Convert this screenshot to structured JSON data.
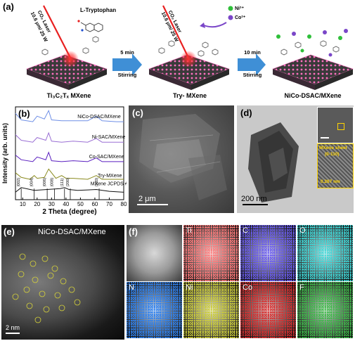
{
  "panel_a": {
    "label": "(a)",
    "laser_text_1": "CO₂ Laser",
    "laser_text_2": "10.6 μm/ 25 W",
    "tryptophan_label": "L-Tryptophan",
    "ni_label": "Ni²⁺",
    "co_label": "Co²⁺",
    "arrow1_top": "5 min",
    "arrow1_bottom": "Stirring",
    "arrow2_top": "10 min",
    "arrow2_bottom": "Stirring",
    "caption1": "Ti₃C₂Tₓ MXene",
    "caption2": "Try- MXene",
    "caption3": "NiCo-DSAC/MXene",
    "colors": {
      "ti": "#ff6fc0",
      "layer": "#2a2a2a",
      "laser": "#e82020",
      "arrow": "#3f8fd6",
      "ni": "#2fbf3a",
      "co": "#7a46c8"
    }
  },
  "panel_b": {
    "label": "(b)",
    "jcpds": "MXene JCPDS # 032-1383",
    "peak_labels": [
      "(002)",
      "(004)",
      "(006)",
      "(008)",
      "(111)",
      "(200)",
      "(220)"
    ]
  },
  "chart_data": {
    "type": "line",
    "xlabel": "2 Theta (degree)",
    "ylabel": "Intensity (arb. units)",
    "xlim": [
      5,
      80
    ],
    "xticks": [
      "10",
      "20",
      "30",
      "40",
      "50",
      "60",
      "70",
      "80"
    ],
    "series": [
      {
        "name": "NiCo-DSAC/MXene",
        "color": "#6f8fe6",
        "x": [
          5,
          9,
          17,
          20,
          25,
          28,
          30,
          37,
          45,
          55,
          61,
          65,
          75,
          80
        ],
        "y": [
          0.93,
          0.86,
          0.84,
          0.9,
          0.87,
          0.96,
          0.86,
          0.85,
          0.85,
          0.85,
          0.9,
          0.85,
          0.84,
          0.84
        ]
      },
      {
        "name": "Ni-SAC/MXene",
        "color": "#9a6fd4",
        "x": [
          5,
          9,
          17,
          20,
          26,
          28,
          30,
          37,
          45,
          55,
          61,
          65,
          75,
          80
        ],
        "y": [
          0.7,
          0.64,
          0.62,
          0.67,
          0.64,
          0.72,
          0.63,
          0.62,
          0.63,
          0.62,
          0.66,
          0.62,
          0.62,
          0.62
        ]
      },
      {
        "name": "Co-SAC/MXene",
        "color": "#5a1fc0",
        "x": [
          5,
          9,
          17,
          20,
          26,
          28,
          30,
          37,
          45,
          55,
          61,
          65,
          75,
          80
        ],
        "y": [
          0.48,
          0.43,
          0.41,
          0.46,
          0.43,
          0.51,
          0.42,
          0.41,
          0.42,
          0.41,
          0.45,
          0.41,
          0.41,
          0.41
        ]
      },
      {
        "name": "Try-MXene",
        "color": "#8a8a1e",
        "x": [
          5,
          9,
          15,
          18,
          20,
          25,
          28,
          33,
          37,
          40,
          45,
          55,
          61,
          65,
          75,
          80
        ],
        "y": [
          0.29,
          0.24,
          0.22,
          0.26,
          0.23,
          0.24,
          0.33,
          0.23,
          0.26,
          0.23,
          0.23,
          0.22,
          0.26,
          0.22,
          0.22,
          0.22
        ]
      },
      {
        "name": "MXene JCPDS # 032-1383",
        "color": "#111111",
        "x": [
          5,
          9,
          18,
          27,
          36,
          39,
          42,
          48,
          61,
          70,
          80
        ],
        "y": [
          0.08,
          0.13,
          0.1,
          0.11,
          0.12,
          0.13,
          0.11,
          0.1,
          0.11,
          0.09,
          0.08
        ]
      }
    ]
  },
  "panel_c": {
    "label": "(c)",
    "scale": "2 μm"
  },
  "panel_d": {
    "label": "(d)",
    "scale": "200 nm",
    "inset_text_1": "MXene sheet",
    "inset_text_2": "(0-110)",
    "inset_text_3": "0.267 nm"
  },
  "panel_e": {
    "label": "(e)",
    "title": "NiCo-DSAC/MXene",
    "scale": "2 nm"
  },
  "panel_f": {
    "label": "(f)",
    "maps": [
      {
        "name": "",
        "color": "#bdbdbd"
      },
      {
        "name": "Ti",
        "color": "#ff7a7a"
      },
      {
        "name": "C",
        "color": "#6a5cf0"
      },
      {
        "name": "O",
        "color": "#3fd8d8"
      },
      {
        "name": "N",
        "color": "#2f82f0"
      },
      {
        "name": "Ni",
        "color": "#cccc3a"
      },
      {
        "name": "Co",
        "color": "#d83030"
      },
      {
        "name": "F",
        "color": "#3fb84a"
      }
    ]
  }
}
